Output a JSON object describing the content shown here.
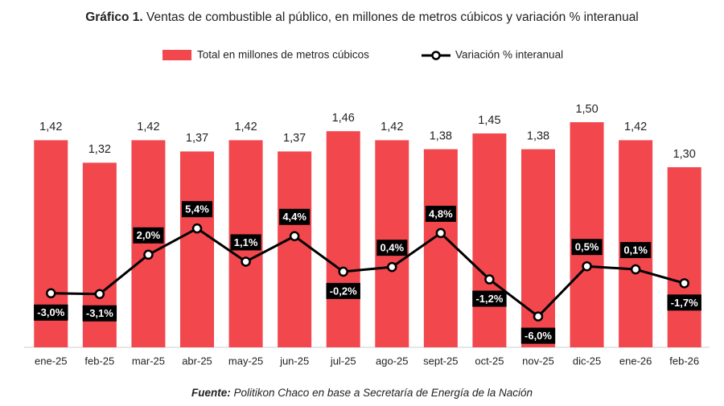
{
  "chart_data": {
    "type": "bar-line",
    "title_bold": "Gráfico 1.",
    "title": "Ventas de combustible al público, en millones de metros cúbicos y variación % interanual",
    "categories": [
      "ene-25",
      "feb-25",
      "mar-25",
      "abr-25",
      "may-25",
      "jun-25",
      "jul-25",
      "ago-25",
      "sept-25",
      "oct-25",
      "nov-25",
      "dic-25",
      "ene-26",
      "feb-26"
    ],
    "series": [
      {
        "name": "Total en millones de metros cúbicos",
        "type": "bar",
        "color": "#f2474d",
        "values": [
          1.42,
          1.32,
          1.42,
          1.37,
          1.42,
          1.37,
          1.46,
          1.42,
          1.38,
          1.45,
          1.38,
          1.5,
          1.42,
          1.3
        ],
        "value_labels": [
          "1,42",
          "1,32",
          "1,42",
          "1,37",
          "1,42",
          "1,37",
          "1,46",
          "1,42",
          "1,38",
          "1,45",
          "1,38",
          "1,50",
          "1,42",
          "1,30"
        ]
      },
      {
        "name": "Variación % interanual",
        "type": "line",
        "axis": "y2",
        "color": "#000000",
        "values": [
          -3.0,
          -3.1,
          2.0,
          5.4,
          1.1,
          4.4,
          -0.2,
          0.4,
          4.8,
          -1.2,
          -6.0,
          0.5,
          0.1,
          -1.7
        ],
        "value_labels": [
          "-3,0%",
          "-3,1%",
          "2,0%",
          "5,4%",
          "1,1%",
          "4,4%",
          "-0,2%",
          "0,4%",
          "4,8%",
          "-1,2%",
          "-6,0%",
          "0,5%",
          "0,1%",
          "-1,7%"
        ]
      }
    ],
    "ylim": [
      0.5,
      1.7
    ],
    "y2lim": [
      -10,
      25
    ],
    "source_label": "Fuente:",
    "source": "Politikon Chaco en base a Secretaría de Energía de la Nación"
  }
}
